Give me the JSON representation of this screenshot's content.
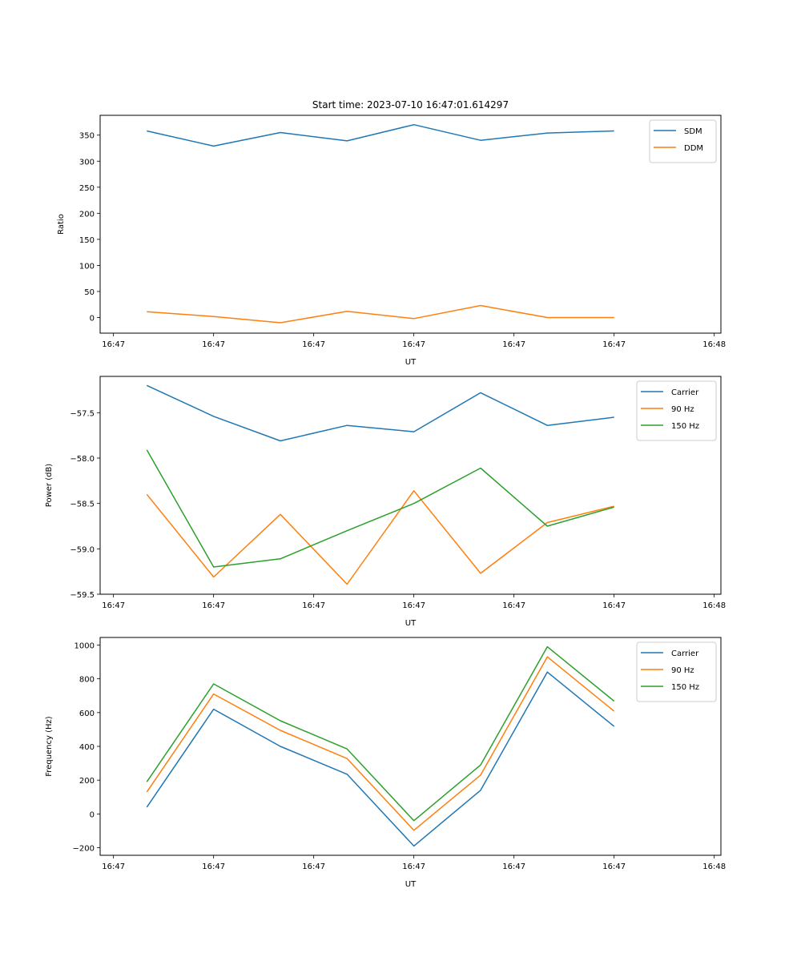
{
  "title": "Start time: 2023-07-10 16:47:01.614297",
  "chart_data": [
    {
      "type": "line",
      "title": "Start time: 2023-07-10 16:47:01.614297",
      "xlabel": "UT",
      "ylabel": "Ratio",
      "x": [
        1,
        2,
        3,
        4,
        5,
        6,
        7,
        8
      ],
      "xlim": [
        0.3,
        9.6
      ],
      "xticks": [
        0.5,
        2,
        3.5,
        5,
        6.5,
        8,
        9.5
      ],
      "xtick_labels": [
        "16:47",
        "16:47",
        "16:47",
        "16:47",
        "16:47",
        "16:47",
        "16:48"
      ],
      "ylim": [
        -30,
        388
      ],
      "yticks": [
        0,
        50,
        100,
        150,
        200,
        250,
        300,
        350
      ],
      "ytick_labels": [
        "0",
        "50",
        "100",
        "150",
        "200",
        "250",
        "300",
        "350"
      ],
      "legend_position": "top-right",
      "series": [
        {
          "name": "SDM",
          "color": "#1f77b4",
          "values": [
            358,
            329,
            355,
            339,
            370,
            340,
            354,
            358
          ]
        },
        {
          "name": "DDM",
          "color": "#ff7f0e",
          "values": [
            11,
            2,
            -10,
            12,
            -2,
            23,
            0,
            0
          ]
        }
      ]
    },
    {
      "type": "line",
      "xlabel": "UT",
      "ylabel": "Power (dB)",
      "x": [
        1,
        2,
        3,
        4,
        5,
        6,
        7,
        8
      ],
      "xlim": [
        0.3,
        9.6
      ],
      "xticks": [
        0.5,
        2,
        3.5,
        5,
        6.5,
        8,
        9.5
      ],
      "xtick_labels": [
        "16:47",
        "16:47",
        "16:47",
        "16:47",
        "16:47",
        "16:47",
        "16:48"
      ],
      "ylim": [
        -59.5,
        -57.1
      ],
      "yticks": [
        -59.5,
        -59.0,
        -58.5,
        -58.0,
        -57.5
      ],
      "ytick_labels": [
        "−59.5",
        "−59.0",
        "−58.5",
        "−58.0",
        "−57.5"
      ],
      "legend_position": "top-right",
      "series": [
        {
          "name": "Carrier",
          "color": "#1f77b4",
          "values": [
            -57.2,
            -57.54,
            -57.81,
            -57.64,
            -57.71,
            -57.28,
            -57.64,
            -57.55
          ]
        },
        {
          "name": "90 Hz",
          "color": "#ff7f0e",
          "values": [
            -58.4,
            -59.31,
            -58.62,
            -59.39,
            -58.36,
            -59.27,
            -58.71,
            -58.53
          ]
        },
        {
          "name": "150 Hz",
          "color": "#2ca02c",
          "values": [
            -57.91,
            -59.2,
            -59.11,
            -58.8,
            -58.5,
            -58.11,
            -58.75,
            -58.54
          ]
        }
      ]
    },
    {
      "type": "line",
      "xlabel": "UT",
      "ylabel": "Frequency (Hz)",
      "x": [
        1,
        2,
        3,
        4,
        5,
        6,
        7,
        8
      ],
      "xlim": [
        0.3,
        9.6
      ],
      "xticks": [
        0.5,
        2,
        3.5,
        5,
        6.5,
        8,
        9.5
      ],
      "xtick_labels": [
        "16:47",
        "16:47",
        "16:47",
        "16:47",
        "16:47",
        "16:47",
        "16:48"
      ],
      "ylim": [
        -245,
        1045
      ],
      "yticks": [
        -200,
        0,
        200,
        400,
        600,
        800,
        1000
      ],
      "ytick_labels": [
        "−200",
        "0",
        "200",
        "400",
        "600",
        "800",
        "1000"
      ],
      "legend_position": "top-right",
      "series": [
        {
          "name": "Carrier",
          "color": "#1f77b4",
          "values": [
            40,
            620,
            400,
            235,
            -190,
            140,
            840,
            518
          ]
        },
        {
          "name": "90 Hz",
          "color": "#ff7f0e",
          "values": [
            130,
            710,
            495,
            328,
            -97,
            230,
            930,
            608
          ]
        },
        {
          "name": "150 Hz",
          "color": "#2ca02c",
          "values": [
            190,
            770,
            552,
            385,
            -40,
            290,
            990,
            668
          ]
        }
      ]
    }
  ]
}
